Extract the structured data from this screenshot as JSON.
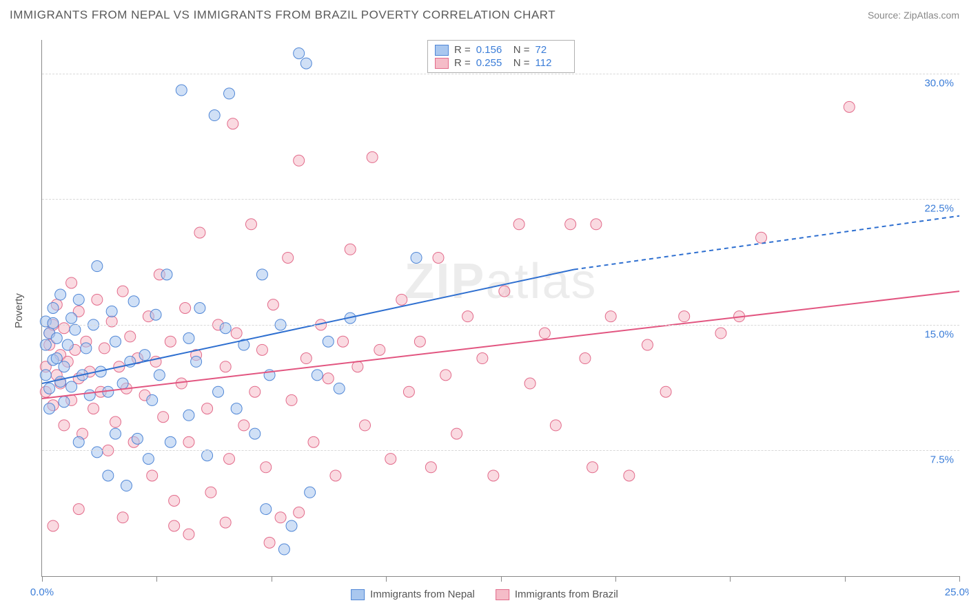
{
  "header": {
    "title": "IMMIGRANTS FROM NEPAL VS IMMIGRANTS FROM BRAZIL POVERTY CORRELATION CHART",
    "source": "Source: ZipAtlas.com"
  },
  "chart": {
    "type": "scatter",
    "ylabel": "Poverty",
    "watermark": "ZIPatlas",
    "background_color": "#ffffff",
    "grid_color": "#d8d8d8",
    "axis_color": "#888888",
    "tick_label_color": "#3b7dd8",
    "xlim": [
      0,
      25
    ],
    "ylim": [
      0,
      32
    ],
    "yticks": [
      {
        "v": 7.5,
        "label": "7.5%"
      },
      {
        "v": 15.0,
        "label": "15.0%"
      },
      {
        "v": 22.5,
        "label": "22.5%"
      },
      {
        "v": 30.0,
        "label": "30.0%"
      }
    ],
    "xticks": [
      {
        "v": 0,
        "label": "0.0%"
      },
      {
        "v": 3.125,
        "label": ""
      },
      {
        "v": 6.25,
        "label": ""
      },
      {
        "v": 9.375,
        "label": ""
      },
      {
        "v": 12.5,
        "label": ""
      },
      {
        "v": 15.625,
        "label": ""
      },
      {
        "v": 18.75,
        "label": ""
      },
      {
        "v": 21.875,
        "label": ""
      },
      {
        "v": 25,
        "label": "25.0%"
      }
    ],
    "marker_radius": 8,
    "marker_opacity": 0.55,
    "series": [
      {
        "name": "Immigrants from Nepal",
        "color_fill": "#a9c7ef",
        "color_stroke": "#4f86d6",
        "trend": {
          "x1": 0,
          "y1": 11.5,
          "x2": 14.5,
          "y2": 18.3,
          "dash_to_x": 25,
          "dash_to_y": 21.5,
          "color": "#2e6fd0",
          "width": 2
        },
        "stats": {
          "R": "0.156",
          "N": "72"
        },
        "points": [
          [
            0.1,
            13.8
          ],
          [
            0.1,
            15.2
          ],
          [
            0.1,
            12.0
          ],
          [
            0.2,
            14.5
          ],
          [
            0.2,
            11.2
          ],
          [
            0.2,
            10.0
          ],
          [
            0.3,
            16.0
          ],
          [
            0.3,
            15.1
          ],
          [
            0.3,
            12.9
          ],
          [
            0.4,
            14.2
          ],
          [
            0.4,
            13.0
          ],
          [
            0.5,
            11.6
          ],
          [
            0.5,
            16.8
          ],
          [
            0.6,
            12.5
          ],
          [
            0.6,
            10.4
          ],
          [
            0.7,
            13.8
          ],
          [
            0.8,
            15.4
          ],
          [
            0.8,
            11.3
          ],
          [
            0.9,
            14.7
          ],
          [
            1.0,
            16.5
          ],
          [
            1.0,
            8.0
          ],
          [
            1.1,
            12.0
          ],
          [
            1.2,
            13.6
          ],
          [
            1.3,
            10.8
          ],
          [
            1.4,
            15.0
          ],
          [
            1.5,
            7.4
          ],
          [
            1.5,
            18.5
          ],
          [
            1.6,
            12.2
          ],
          [
            1.8,
            11.0
          ],
          [
            1.8,
            6.0
          ],
          [
            1.9,
            15.8
          ],
          [
            2.0,
            8.5
          ],
          [
            2.0,
            14.0
          ],
          [
            2.2,
            11.5
          ],
          [
            2.3,
            5.4
          ],
          [
            2.4,
            12.8
          ],
          [
            2.5,
            16.4
          ],
          [
            2.6,
            8.2
          ],
          [
            2.8,
            13.2
          ],
          [
            2.9,
            7.0
          ],
          [
            3.0,
            10.5
          ],
          [
            3.1,
            15.6
          ],
          [
            3.2,
            12.0
          ],
          [
            3.4,
            18.0
          ],
          [
            3.5,
            8.0
          ],
          [
            3.8,
            29.0
          ],
          [
            4.0,
            9.6
          ],
          [
            4.0,
            14.2
          ],
          [
            4.2,
            12.8
          ],
          [
            4.3,
            16.0
          ],
          [
            4.5,
            7.2
          ],
          [
            4.7,
            27.5
          ],
          [
            4.8,
            11.0
          ],
          [
            5.0,
            14.8
          ],
          [
            5.1,
            28.8
          ],
          [
            5.3,
            10.0
          ],
          [
            5.5,
            13.8
          ],
          [
            5.8,
            8.5
          ],
          [
            6.0,
            18.0
          ],
          [
            6.1,
            4.0
          ],
          [
            6.2,
            12.0
          ],
          [
            6.5,
            15.0
          ],
          [
            6.6,
            1.6
          ],
          [
            6.8,
            3.0
          ],
          [
            7.0,
            31.2
          ],
          [
            7.2,
            30.6
          ],
          [
            7.3,
            5.0
          ],
          [
            7.5,
            12.0
          ],
          [
            7.8,
            14.0
          ],
          [
            8.1,
            11.2
          ],
          [
            8.4,
            15.4
          ],
          [
            10.2,
            19.0
          ]
        ]
      },
      {
        "name": "Immigrants from Brazil",
        "color_fill": "#f5bcc8",
        "color_stroke": "#e26a8a",
        "trend": {
          "x1": 0,
          "y1": 10.6,
          "x2": 25,
          "y2": 17.0,
          "dash_to_x": null,
          "dash_to_y": null,
          "color": "#e25580",
          "width": 2
        },
        "stats": {
          "R": "0.255",
          "N": "112"
        },
        "points": [
          [
            0.1,
            12.5
          ],
          [
            0.1,
            11.0
          ],
          [
            0.2,
            13.8
          ],
          [
            0.2,
            14.5
          ],
          [
            0.3,
            10.2
          ],
          [
            0.3,
            15.0
          ],
          [
            0.4,
            12.0
          ],
          [
            0.4,
            16.2
          ],
          [
            0.5,
            11.5
          ],
          [
            0.5,
            13.2
          ],
          [
            0.6,
            9.0
          ],
          [
            0.6,
            14.8
          ],
          [
            0.7,
            12.8
          ],
          [
            0.8,
            17.5
          ],
          [
            0.8,
            10.5
          ],
          [
            0.9,
            13.5
          ],
          [
            1.0,
            11.8
          ],
          [
            1.0,
            15.8
          ],
          [
            1.1,
            8.5
          ],
          [
            1.2,
            14.0
          ],
          [
            1.3,
            12.2
          ],
          [
            1.4,
            10.0
          ],
          [
            1.5,
            16.5
          ],
          [
            1.6,
            11.0
          ],
          [
            1.7,
            13.6
          ],
          [
            1.8,
            7.5
          ],
          [
            1.9,
            15.2
          ],
          [
            2.0,
            9.2
          ],
          [
            2.1,
            12.5
          ],
          [
            2.2,
            17.0
          ],
          [
            2.3,
            11.2
          ],
          [
            2.4,
            14.3
          ],
          [
            2.5,
            8.0
          ],
          [
            2.6,
            13.0
          ],
          [
            2.8,
            10.8
          ],
          [
            2.9,
            15.5
          ],
          [
            3.0,
            6.0
          ],
          [
            3.1,
            12.8
          ],
          [
            3.2,
            18.0
          ],
          [
            3.3,
            9.5
          ],
          [
            3.5,
            14.0
          ],
          [
            3.6,
            4.5
          ],
          [
            3.8,
            11.5
          ],
          [
            3.9,
            16.0
          ],
          [
            4.0,
            8.0
          ],
          [
            4.2,
            13.2
          ],
          [
            4.3,
            20.5
          ],
          [
            4.5,
            10.0
          ],
          [
            4.6,
            5.0
          ],
          [
            4.8,
            15.0
          ],
          [
            5.0,
            12.5
          ],
          [
            5.1,
            7.0
          ],
          [
            5.2,
            27.0
          ],
          [
            5.3,
            14.5
          ],
          [
            5.5,
            9.0
          ],
          [
            5.7,
            21.0
          ],
          [
            5.8,
            11.0
          ],
          [
            6.0,
            13.5
          ],
          [
            6.1,
            6.5
          ],
          [
            6.3,
            16.2
          ],
          [
            6.5,
            3.5
          ],
          [
            6.7,
            19.0
          ],
          [
            6.8,
            10.5
          ],
          [
            7.0,
            24.8
          ],
          [
            7.2,
            13.0
          ],
          [
            7.4,
            8.0
          ],
          [
            7.6,
            15.0
          ],
          [
            7.8,
            11.8
          ],
          [
            8.0,
            6.0
          ],
          [
            8.2,
            14.0
          ],
          [
            8.4,
            19.5
          ],
          [
            8.6,
            12.5
          ],
          [
            8.8,
            9.0
          ],
          [
            9.0,
            25.0
          ],
          [
            9.2,
            13.5
          ],
          [
            9.5,
            7.0
          ],
          [
            9.8,
            16.5
          ],
          [
            10.0,
            11.0
          ],
          [
            10.3,
            14.0
          ],
          [
            10.6,
            6.5
          ],
          [
            10.8,
            19.0
          ],
          [
            11.0,
            12.0
          ],
          [
            11.3,
            8.5
          ],
          [
            11.6,
            15.5
          ],
          [
            12.0,
            13.0
          ],
          [
            12.3,
            6.0
          ],
          [
            12.6,
            17.0
          ],
          [
            13.0,
            21.0
          ],
          [
            13.3,
            11.5
          ],
          [
            13.7,
            14.5
          ],
          [
            14.0,
            9.0
          ],
          [
            14.4,
            21.0
          ],
          [
            14.8,
            13.0
          ],
          [
            15.0,
            6.5
          ],
          [
            15.1,
            21.0
          ],
          [
            15.5,
            15.5
          ],
          [
            16.0,
            6.0
          ],
          [
            16.5,
            13.8
          ],
          [
            17.0,
            11.0
          ],
          [
            17.5,
            15.5
          ],
          [
            18.5,
            14.5
          ],
          [
            19.0,
            15.5
          ],
          [
            19.6,
            20.2
          ],
          [
            22.0,
            28.0
          ],
          [
            0.3,
            3.0
          ],
          [
            1.0,
            4.0
          ],
          [
            2.2,
            3.5
          ],
          [
            3.6,
            3.0
          ],
          [
            4.0,
            2.5
          ],
          [
            5.0,
            3.2
          ],
          [
            6.2,
            2.0
          ],
          [
            7.0,
            3.8
          ]
        ]
      }
    ],
    "legend_bottom": [
      {
        "label": "Immigrants from Nepal",
        "fill": "#a9c7ef",
        "stroke": "#4f86d6"
      },
      {
        "label": "Immigrants from Brazil",
        "fill": "#f5bcc8",
        "stroke": "#e26a8a"
      }
    ],
    "stats_legend": [
      {
        "fill": "#a9c7ef",
        "stroke": "#4f86d6",
        "R": "0.156",
        "N": "72"
      },
      {
        "fill": "#f5bcc8",
        "stroke": "#e26a8a",
        "R": "0.255",
        "N": "112"
      }
    ]
  }
}
